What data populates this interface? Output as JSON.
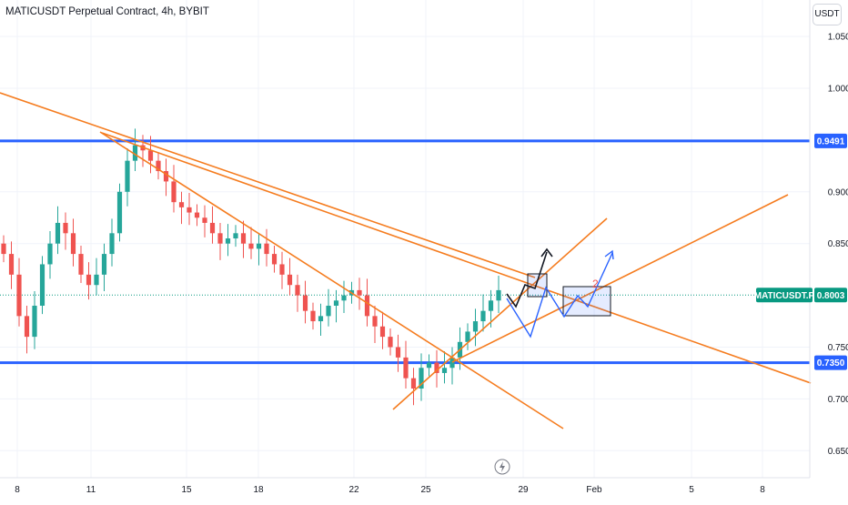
{
  "header": {
    "title": "MATICUSDT Perpetual Contract, 4h, BYBIT",
    "currency": "USDT"
  },
  "colors": {
    "up": "#26a69a",
    "down": "#ef5350",
    "level": "#2962ff",
    "trend": "#f57c1f",
    "last_price": "#089981",
    "grid": "#f0f3fa"
  },
  "chart_data": {
    "type": "candlestick",
    "symbol": "MATICUSDT.P",
    "interval": "4h",
    "exchange": "BYBIT",
    "x_ticks": [
      "8",
      "11",
      "15",
      "18",
      "22",
      "25",
      "29",
      "Feb",
      "5",
      "8"
    ],
    "y_ticks": [
      "1.0500",
      "1.0000",
      "0.9000",
      "0.8500",
      "0.7500",
      "0.7000",
      "0.6500"
    ],
    "ylim": [
      0.635,
      1.085
    ],
    "levels": [
      {
        "label": "0.9491",
        "value": 0.9491
      },
      {
        "label": "0.7350",
        "value": 0.735
      }
    ],
    "last_price": {
      "symbol_label": "MATICUSDT.P",
      "value_label": "0.8003",
      "value": 0.8003
    },
    "candles_close_approx": [
      0.84,
      0.82,
      0.78,
      0.76,
      0.79,
      0.83,
      0.85,
      0.87,
      0.86,
      0.84,
      0.82,
      0.81,
      0.82,
      0.84,
      0.86,
      0.9,
      0.93,
      0.945,
      0.94,
      0.93,
      0.92,
      0.91,
      0.89,
      0.885,
      0.88,
      0.875,
      0.87,
      0.86,
      0.85,
      0.855,
      0.86,
      0.85,
      0.845,
      0.85,
      0.84,
      0.83,
      0.82,
      0.81,
      0.8,
      0.785,
      0.775,
      0.78,
      0.79,
      0.795,
      0.8,
      0.805,
      0.8,
      0.78,
      0.77,
      0.76,
      0.75,
      0.74,
      0.72,
      0.71,
      0.73,
      0.735,
      0.725,
      0.73,
      0.74,
      0.755,
      0.765,
      0.775,
      0.785,
      0.795,
      0.805
    ]
  },
  "footer": {
    "icon": "lightning-icon"
  }
}
